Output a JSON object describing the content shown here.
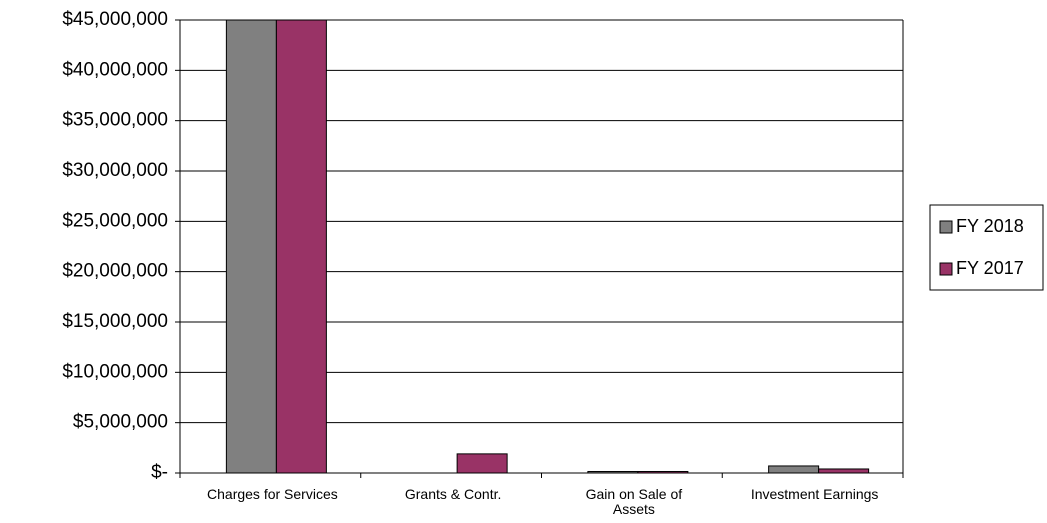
{
  "chart_data": {
    "type": "bar",
    "categories": [
      "Charges for Services",
      "Grants & Contr.",
      "Gain on Sale of Assets",
      "Investment Earnings"
    ],
    "series": [
      {
        "name": "FY 2018",
        "color": "#808080",
        "values": [
          45000000,
          0,
          150000,
          700000
        ]
      },
      {
        "name": "FY 2017",
        "color": "#993366",
        "values": [
          45000000,
          1900000,
          150000,
          400000
        ]
      }
    ],
    "ylim": [
      0,
      45000000
    ],
    "yticks": [
      {
        "value": 0,
        "label": "$-"
      },
      {
        "value": 5000000,
        "label": "$5,000,000"
      },
      {
        "value": 10000000,
        "label": "$10,000,000"
      },
      {
        "value": 15000000,
        "label": "$15,000,000"
      },
      {
        "value": 20000000,
        "label": "$20,000,000"
      },
      {
        "value": 25000000,
        "label": "$25,000,000"
      },
      {
        "value": 30000000,
        "label": "$30,000,000"
      },
      {
        "value": 35000000,
        "label": "$35,000,000"
      },
      {
        "value": 40000000,
        "label": "$40,000,000"
      },
      {
        "value": 45000000,
        "label": "$45,000,000"
      }
    ],
    "grid": true,
    "legend": "right"
  }
}
